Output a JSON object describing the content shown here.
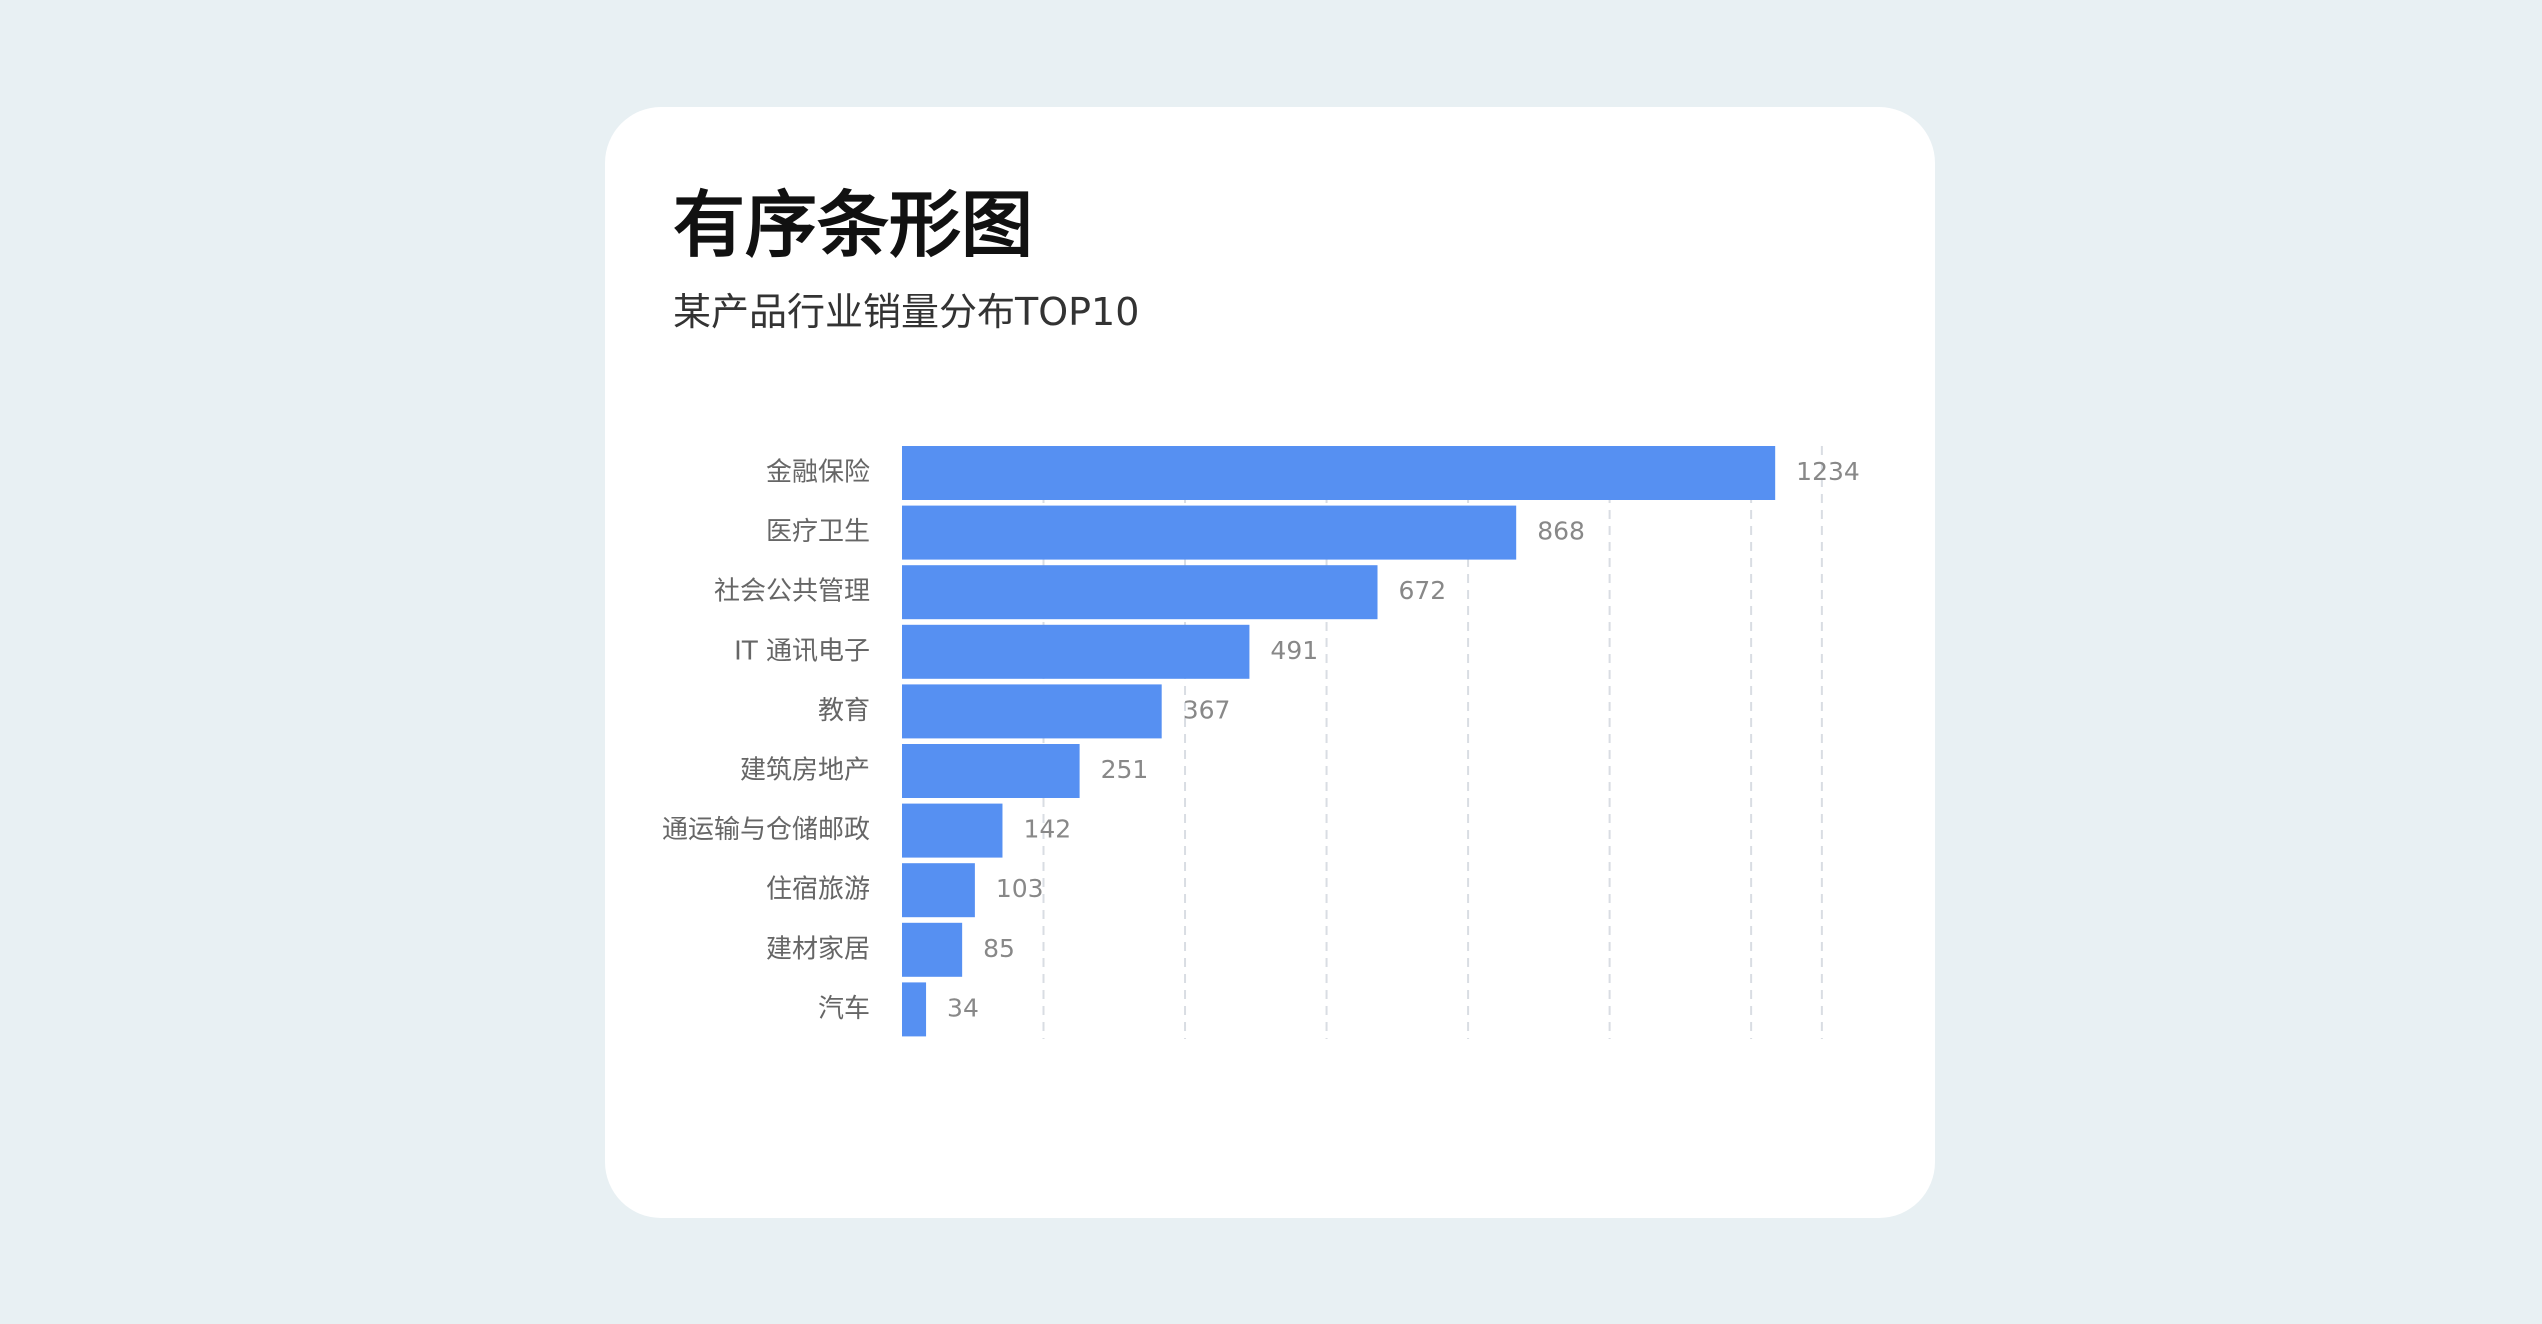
{
  "title": "有序条形图",
  "subtitle": "某产品行业销量分布TOP10",
  "colors": {
    "background": "#e8f0f3",
    "card": "#ffffff",
    "bar": "#5690f2",
    "grid": "#d9dde3"
  },
  "chart_data": {
    "type": "bar",
    "orientation": "horizontal",
    "title": "有序条形图",
    "subtitle": "某产品行业销量分布TOP10",
    "categories": [
      "金融保险",
      "医疗卫生",
      "社会公共管理",
      "IT 通讯电子",
      "教育",
      "建筑房地产",
      "通运输与仓储邮政",
      "住宿旅游",
      "建材家居",
      "汽车"
    ],
    "values": [
      1234,
      868,
      672,
      491,
      367,
      251,
      142,
      103,
      85,
      34
    ],
    "xlim": [
      0,
      1300
    ],
    "grid": true,
    "xlabel": "",
    "ylabel": ""
  }
}
